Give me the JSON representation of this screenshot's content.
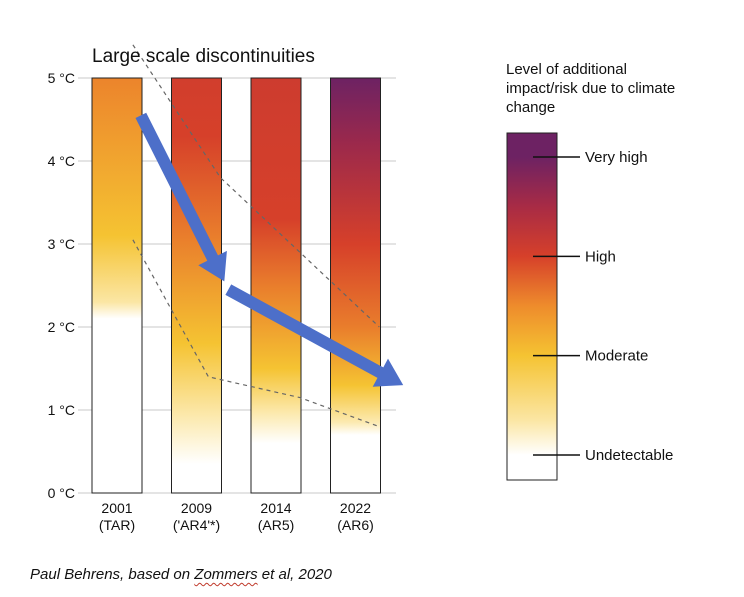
{
  "colors": {
    "undetectable": "#ffffff",
    "moderate": "#f5c332",
    "high": "#d6402a",
    "very_high": "#6d2263",
    "arrow": "#4d6fc9",
    "gridline": "#c9c9c9",
    "dashed_line": "#666666"
  },
  "chart_data": {
    "type": "heatmap",
    "title": "Large scale discontinuities",
    "ylabel": "°C",
    "ylim": [
      0,
      5
    ],
    "y_ticks": [
      {
        "value": 0,
        "label": "0 °C"
      },
      {
        "value": 1,
        "label": "1 °C"
      },
      {
        "value": 2,
        "label": "2 °C"
      },
      {
        "value": 3,
        "label": "3 °C"
      },
      {
        "value": 4,
        "label": "4 °C"
      },
      {
        "value": 5,
        "label": "5 °C"
      }
    ],
    "categories": [
      {
        "year": "2001",
        "report": "(TAR)"
      },
      {
        "year": "2009",
        "report": "('AR4'*)"
      },
      {
        "year": "2014",
        "report": "(AR5)"
      },
      {
        "year": "2022",
        "report": "(AR6)"
      }
    ],
    "series": [
      {
        "name": "2001 (TAR)",
        "risk_stops": [
          {
            "temp": 2.1,
            "level": 0
          },
          {
            "temp": 2.3,
            "level": 0.35
          },
          {
            "temp": 3.1,
            "level": 1.0
          },
          {
            "temp": 5.0,
            "level": 1.55
          }
        ]
      },
      {
        "name": "2009 ('AR4'*)",
        "risk_stops": [
          {
            "temp": 0.35,
            "level": 0
          },
          {
            "temp": 0.9,
            "level": 0.3
          },
          {
            "temp": 1.8,
            "level": 1.0
          },
          {
            "temp": 3.1,
            "level": 1.6
          },
          {
            "temp": 4.3,
            "level": 2.0
          },
          {
            "temp": 5.0,
            "level": 2.05
          }
        ]
      },
      {
        "name": "2014 (AR5)",
        "risk_stops": [
          {
            "temp": 0.6,
            "level": 0
          },
          {
            "temp": 0.95,
            "level": 0.3
          },
          {
            "temp": 1.5,
            "level": 1.0
          },
          {
            "temp": 2.5,
            "level": 1.6
          },
          {
            "temp": 3.3,
            "level": 2.0
          },
          {
            "temp": 5.0,
            "level": 2.1
          }
        ]
      },
      {
        "name": "2022 (AR6)",
        "risk_stops": [
          {
            "temp": 0.7,
            "level": 0
          },
          {
            "temp": 0.85,
            "level": 0.3
          },
          {
            "temp": 1.3,
            "level": 1.0
          },
          {
            "temp": 2.0,
            "level": 1.6
          },
          {
            "temp": 3.0,
            "level": 2.0
          },
          {
            "temp": 4.2,
            "level": 2.6
          },
          {
            "temp": 5.0,
            "level": 3.0
          }
        ]
      }
    ],
    "confidence_bounds": {
      "upper": [
        {
          "x": 0.2,
          "temp": 5.4
        },
        {
          "x": 1.3,
          "temp": 3.8
        },
        {
          "x": 2.3,
          "temp": 2.9
        },
        {
          "x": 3.3,
          "temp": 2.0
        }
      ],
      "lower": [
        {
          "x": 0.2,
          "temp": 3.05
        },
        {
          "x": 1.15,
          "temp": 1.4
        },
        {
          "x": 2.3,
          "temp": 1.15
        },
        {
          "x": 3.3,
          "temp": 0.8
        }
      ]
    },
    "trend_arrows": [
      {
        "from": {
          "x": 0.3,
          "temp": 4.55
        },
        "to": {
          "x": 1.35,
          "temp": 2.55
        }
      },
      {
        "from": {
          "x": 1.4,
          "temp": 2.45
        },
        "to": {
          "x": 3.6,
          "temp": 1.3
        }
      }
    ],
    "legend": {
      "title_lines": [
        "Level of additional",
        "impact/risk due to climate",
        "change"
      ],
      "levels": [
        {
          "label": "Very high",
          "level": 3
        },
        {
          "label": "High",
          "level": 2
        },
        {
          "label": "Moderate",
          "level": 1
        },
        {
          "label": "Undetectable",
          "level": 0
        }
      ]
    }
  },
  "caption": {
    "prefix": "Paul Behrens, based on ",
    "link_text": "Zommers",
    "suffix": " et al, 2020"
  }
}
